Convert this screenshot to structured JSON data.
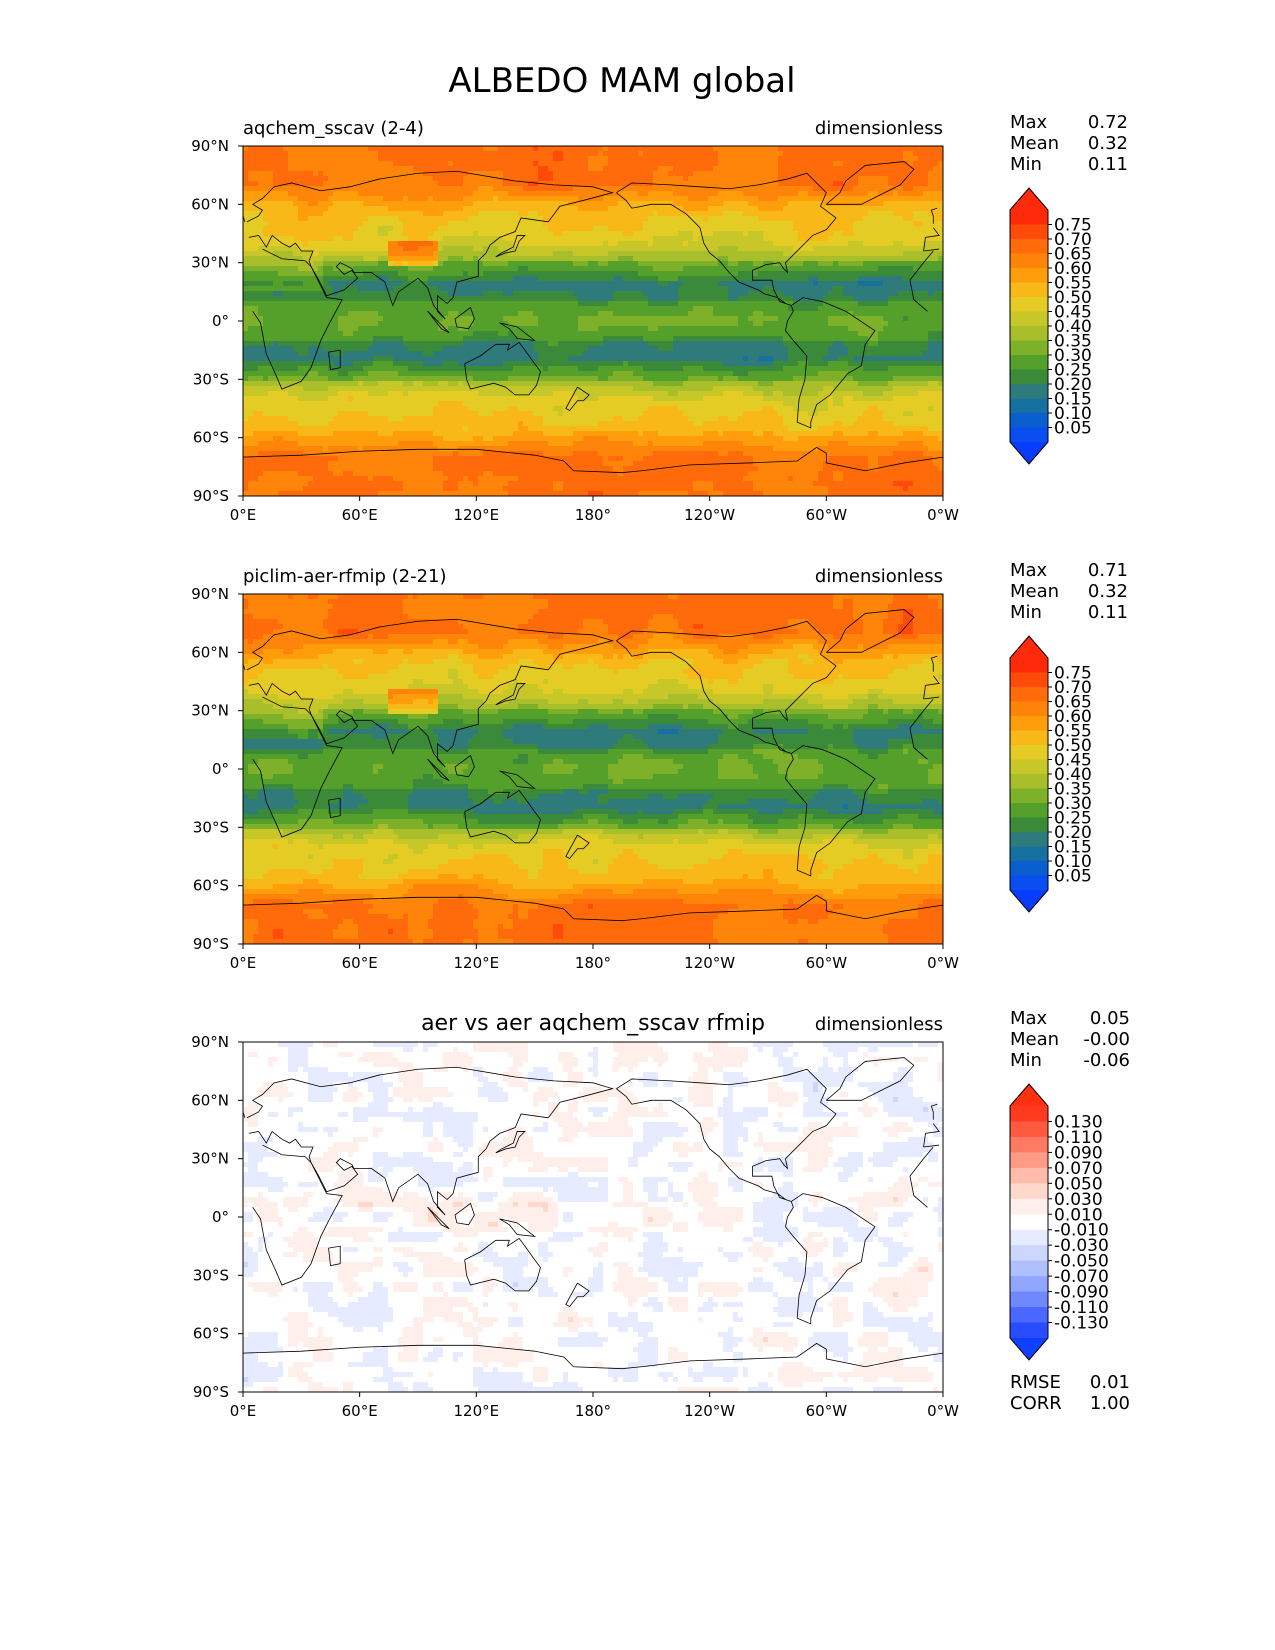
{
  "title": "ALBEDO MAM global",
  "x_ticks": [
    "0°E",
    "60°E",
    "120°E",
    "180°",
    "120°W",
    "60°W",
    "0°W"
  ],
  "y_ticks": [
    "90°N",
    "60°N",
    "30°N",
    "0°",
    "30°S",
    "60°S",
    "90°S"
  ],
  "chart_data": [
    {
      "type": "heatmap",
      "title": "aqchem_sscav (2-4)",
      "units": "dimensionless",
      "stats": [
        {
          "label": "Max",
          "value": "0.72"
        },
        {
          "label": "Mean",
          "value": "0.32"
        },
        {
          "label": "Min",
          "value": "0.11"
        }
      ],
      "colorbar": {
        "labels": [
          "0.75",
          "0.70",
          "0.65",
          "0.60",
          "0.55",
          "0.50",
          "0.45",
          "0.40",
          "0.35",
          "0.30",
          "0.25",
          "0.20",
          "0.15",
          "0.10",
          "0.05"
        ],
        "colors": [
          "#ff2a0a",
          "#ff4a0a",
          "#ff6a0a",
          "#ff850a",
          "#ff9d0a",
          "#f8b818",
          "#e5cc25",
          "#c8c72a",
          "#a8bf2b",
          "#7eb02a",
          "#55a02a",
          "#3a8a3a",
          "#2f7a7a",
          "#1670a0",
          "#0a5fd0",
          "#0a4ef0"
        ],
        "top_cap": "#ff2a0a",
        "bottom_cap": "#0a3cff"
      },
      "field": "clim_a"
    },
    {
      "type": "heatmap",
      "title": "piclim-aer-rfmip (2-21)",
      "units": "dimensionless",
      "stats": [
        {
          "label": "Max",
          "value": "0.71"
        },
        {
          "label": "Mean",
          "value": "0.32"
        },
        {
          "label": "Min",
          "value": "0.11"
        }
      ],
      "colorbar": {
        "labels": [
          "0.75",
          "0.70",
          "0.65",
          "0.60",
          "0.55",
          "0.50",
          "0.45",
          "0.40",
          "0.35",
          "0.30",
          "0.25",
          "0.20",
          "0.15",
          "0.10",
          "0.05"
        ],
        "colors": [
          "#ff2a0a",
          "#ff4a0a",
          "#ff6a0a",
          "#ff850a",
          "#ff9d0a",
          "#f8b818",
          "#e5cc25",
          "#c8c72a",
          "#a8bf2b",
          "#7eb02a",
          "#55a02a",
          "#3a8a3a",
          "#2f7a7a",
          "#1670a0",
          "#0a5fd0",
          "#0a4ef0"
        ],
        "top_cap": "#ff2a0a",
        "bottom_cap": "#0a3cff"
      },
      "field": "clim_b"
    },
    {
      "type": "heatmap",
      "title": "aer vs aer aqchem_sscav rfmip",
      "units": "dimensionless",
      "stats": [
        {
          "label": "Max",
          "value": "0.05"
        },
        {
          "label": "Mean",
          "value": "-0.00"
        },
        {
          "label": "Min",
          "value": "-0.06"
        }
      ],
      "colorbar": {
        "labels": [
          "0.130",
          "0.110",
          "0.090",
          "0.070",
          "0.050",
          "0.030",
          "0.010",
          "-0.010",
          "-0.030",
          "-0.050",
          "-0.070",
          "-0.090",
          "-0.110",
          "-0.130"
        ],
        "colors": [
          "#ff3a1e",
          "#ff5a40",
          "#ff7a62",
          "#ff9c88",
          "#ffbcaa",
          "#ffd8cc",
          "#ffefea",
          "#ffffff",
          "#e6ebff",
          "#ccd6ff",
          "#b0c0ff",
          "#90a6ff",
          "#6e88ff",
          "#4a68ff",
          "#2a4cff"
        ],
        "top_cap": "#ff3010",
        "bottom_cap": "#1040ff"
      },
      "extra_stats": [
        {
          "label": "RMSE",
          "value": "0.01"
        },
        {
          "label": "CORR",
          "value": "1.00"
        }
      ],
      "field": "diff"
    }
  ]
}
